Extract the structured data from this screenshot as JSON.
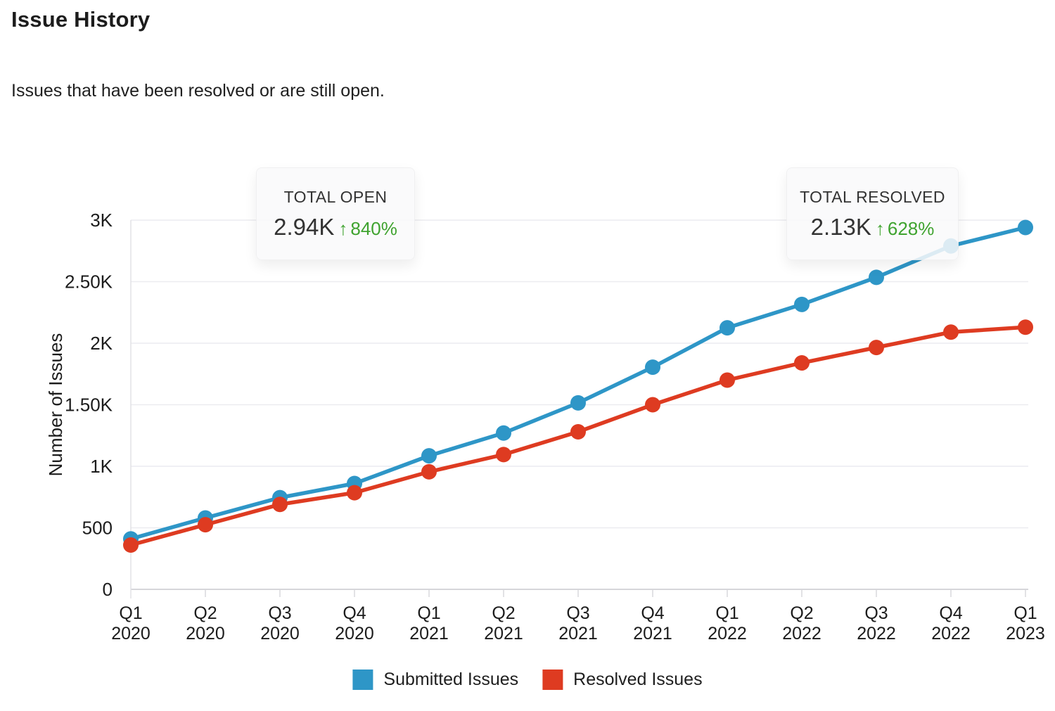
{
  "page": {
    "title": "Issue History",
    "subtitle": "Issues that have been resolved or are still open."
  },
  "colors": {
    "submitted": "#2E96C7",
    "resolved": "#DE3B21",
    "positive_green": "#3FA32F",
    "gridline": "#ECECF0",
    "baseline": "#D6D6DA",
    "axis_text": "#1c1c1c"
  },
  "stats": [
    {
      "label": "TOTAL OPEN",
      "value": "2.94K",
      "arrow": "↑",
      "delta": "840%"
    },
    {
      "label": "TOTAL RESOLVED",
      "value": "2.13K",
      "arrow": "↑",
      "delta": "628%"
    }
  ],
  "chart_data": {
    "type": "line",
    "title": "Issue History",
    "xlabel": "",
    "ylabel": "Number of Issues",
    "categories": [
      "Q1 2020",
      "Q2 2020",
      "Q3 2020",
      "Q4 2020",
      "Q1 2021",
      "Q2 2021",
      "Q3 2021",
      "Q4 2021",
      "Q1 2022",
      "Q2 2022",
      "Q3 2022",
      "Q4 2022",
      "Q1 2023"
    ],
    "series": [
      {
        "name": "Submitted Issues",
        "color": "#2E96C7",
        "values": [
          410,
          580,
          745,
          860,
          1085,
          1270,
          1515,
          1805,
          2125,
          2315,
          2535,
          2790,
          2940
        ]
      },
      {
        "name": "Resolved Issues",
        "color": "#DE3B21",
        "values": [
          360,
          525,
          690,
          785,
          955,
          1095,
          1280,
          1500,
          1700,
          1840,
          1965,
          2090,
          2130
        ]
      }
    ],
    "ylim": [
      0,
      3000
    ],
    "yticks": [
      {
        "v": 0,
        "label": "0"
      },
      {
        "v": 500,
        "label": "500"
      },
      {
        "v": 1000,
        "label": "1K"
      },
      {
        "v": 1500,
        "label": "1.50K"
      },
      {
        "v": 2000,
        "label": "2K"
      },
      {
        "v": 2500,
        "label": "2.50K"
      },
      {
        "v": 3000,
        "label": "3K"
      }
    ],
    "grid": "horizontal",
    "legend_position": "bottom"
  }
}
